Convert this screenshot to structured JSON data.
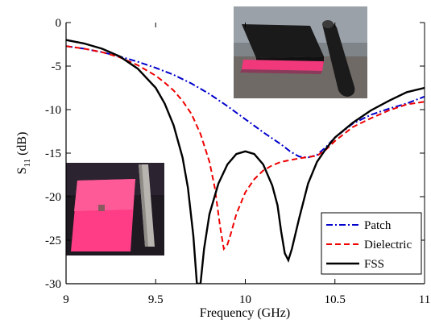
{
  "chart_data": {
    "type": "line",
    "title": "",
    "xlabel": "Frequency (GHz)",
    "ylabel": "S",
    "ylabel_subscript": "11",
    "ylabel_unit": " (dB)",
    "xlim": [
      9,
      11
    ],
    "ylim": [
      -30,
      0
    ],
    "x_ticks": [
      9,
      9.5,
      10,
      10.5,
      11
    ],
    "x_tick_labels": [
      "9",
      "9.5",
      "10",
      "10.5",
      "11"
    ],
    "y_ticks": [
      0,
      -5,
      -10,
      -15,
      -20,
      -25,
      -30
    ],
    "y_tick_labels": [
      "0",
      "-5",
      "-10",
      "-15",
      "-20",
      "-25",
      "-30"
    ],
    "grid": false,
    "legend_position": "bottom-right",
    "series": [
      {
        "name": "Patch",
        "color": "#0000cc",
        "dash": "dash-dot",
        "points": [
          [
            9.0,
            -2.7
          ],
          [
            9.1,
            -3.0
          ],
          [
            9.2,
            -3.4
          ],
          [
            9.3,
            -3.9
          ],
          [
            9.4,
            -4.5
          ],
          [
            9.5,
            -5.2
          ],
          [
            9.6,
            -6.0
          ],
          [
            9.7,
            -7.0
          ],
          [
            9.8,
            -8.2
          ],
          [
            9.9,
            -9.6
          ],
          [
            10.0,
            -11.1
          ],
          [
            10.1,
            -12.6
          ],
          [
            10.2,
            -14.0
          ],
          [
            10.25,
            -14.8
          ],
          [
            10.3,
            -15.4
          ],
          [
            10.35,
            -15.5
          ],
          [
            10.4,
            -15.2
          ],
          [
            10.45,
            -14.3
          ],
          [
            10.5,
            -13.2
          ],
          [
            10.6,
            -11.6
          ],
          [
            10.7,
            -10.6
          ],
          [
            10.8,
            -9.9
          ],
          [
            10.9,
            -9.3
          ],
          [
            11.0,
            -8.5
          ]
        ]
      },
      {
        "name": "Dielectric",
        "color": "#ee0000",
        "dash": "dashed",
        "points": [
          [
            9.0,
            -2.7
          ],
          [
            9.1,
            -3.0
          ],
          [
            9.2,
            -3.4
          ],
          [
            9.3,
            -4.0
          ],
          [
            9.4,
            -4.9
          ],
          [
            9.5,
            -6.1
          ],
          [
            9.55,
            -6.9
          ],
          [
            9.6,
            -7.8
          ],
          [
            9.65,
            -9.0
          ],
          [
            9.7,
            -10.5
          ],
          [
            9.75,
            -12.8
          ],
          [
            9.8,
            -16.0
          ],
          [
            9.83,
            -19.0
          ],
          [
            9.86,
            -23.5
          ],
          [
            9.88,
            -26.0
          ],
          [
            9.9,
            -25.5
          ],
          [
            9.92,
            -24.2
          ],
          [
            9.95,
            -22.0
          ],
          [
            10.0,
            -19.5
          ],
          [
            10.05,
            -18.0
          ],
          [
            10.1,
            -17.0
          ],
          [
            10.15,
            -16.4
          ],
          [
            10.2,
            -16.0
          ],
          [
            10.3,
            -15.6
          ],
          [
            10.4,
            -15.3
          ],
          [
            10.45,
            -14.6
          ],
          [
            10.5,
            -13.6
          ],
          [
            10.6,
            -12.0
          ],
          [
            10.7,
            -11.0
          ],
          [
            10.8,
            -10.1
          ],
          [
            10.9,
            -9.4
          ],
          [
            11.0,
            -9.1
          ]
        ]
      },
      {
        "name": "FSS",
        "color": "#000000",
        "dash": "solid",
        "points": [
          [
            9.0,
            -2.0
          ],
          [
            9.1,
            -2.4
          ],
          [
            9.2,
            -3.0
          ],
          [
            9.3,
            -3.9
          ],
          [
            9.4,
            -5.3
          ],
          [
            9.5,
            -7.5
          ],
          [
            9.55,
            -9.3
          ],
          [
            9.6,
            -11.8
          ],
          [
            9.65,
            -15.5
          ],
          [
            9.68,
            -19.0
          ],
          [
            9.71,
            -24.5
          ],
          [
            9.73,
            -30.0
          ],
          [
            9.75,
            -30.0
          ],
          [
            9.77,
            -26.0
          ],
          [
            9.8,
            -22.0
          ],
          [
            9.85,
            -18.5
          ],
          [
            9.9,
            -16.3
          ],
          [
            9.95,
            -15.1
          ],
          [
            10.0,
            -14.8
          ],
          [
            10.05,
            -15.1
          ],
          [
            10.1,
            -16.3
          ],
          [
            10.15,
            -18.7
          ],
          [
            10.18,
            -21.0
          ],
          [
            10.2,
            -24.0
          ],
          [
            10.22,
            -26.5
          ],
          [
            10.24,
            -27.3
          ],
          [
            10.26,
            -26.0
          ],
          [
            10.3,
            -22.5
          ],
          [
            10.35,
            -18.5
          ],
          [
            10.4,
            -16.0
          ],
          [
            10.45,
            -14.5
          ],
          [
            10.5,
            -13.2
          ],
          [
            10.6,
            -11.5
          ],
          [
            10.7,
            -10.1
          ],
          [
            10.8,
            -9.0
          ],
          [
            10.9,
            -8.0
          ],
          [
            11.0,
            -7.5
          ]
        ]
      }
    ]
  }
}
